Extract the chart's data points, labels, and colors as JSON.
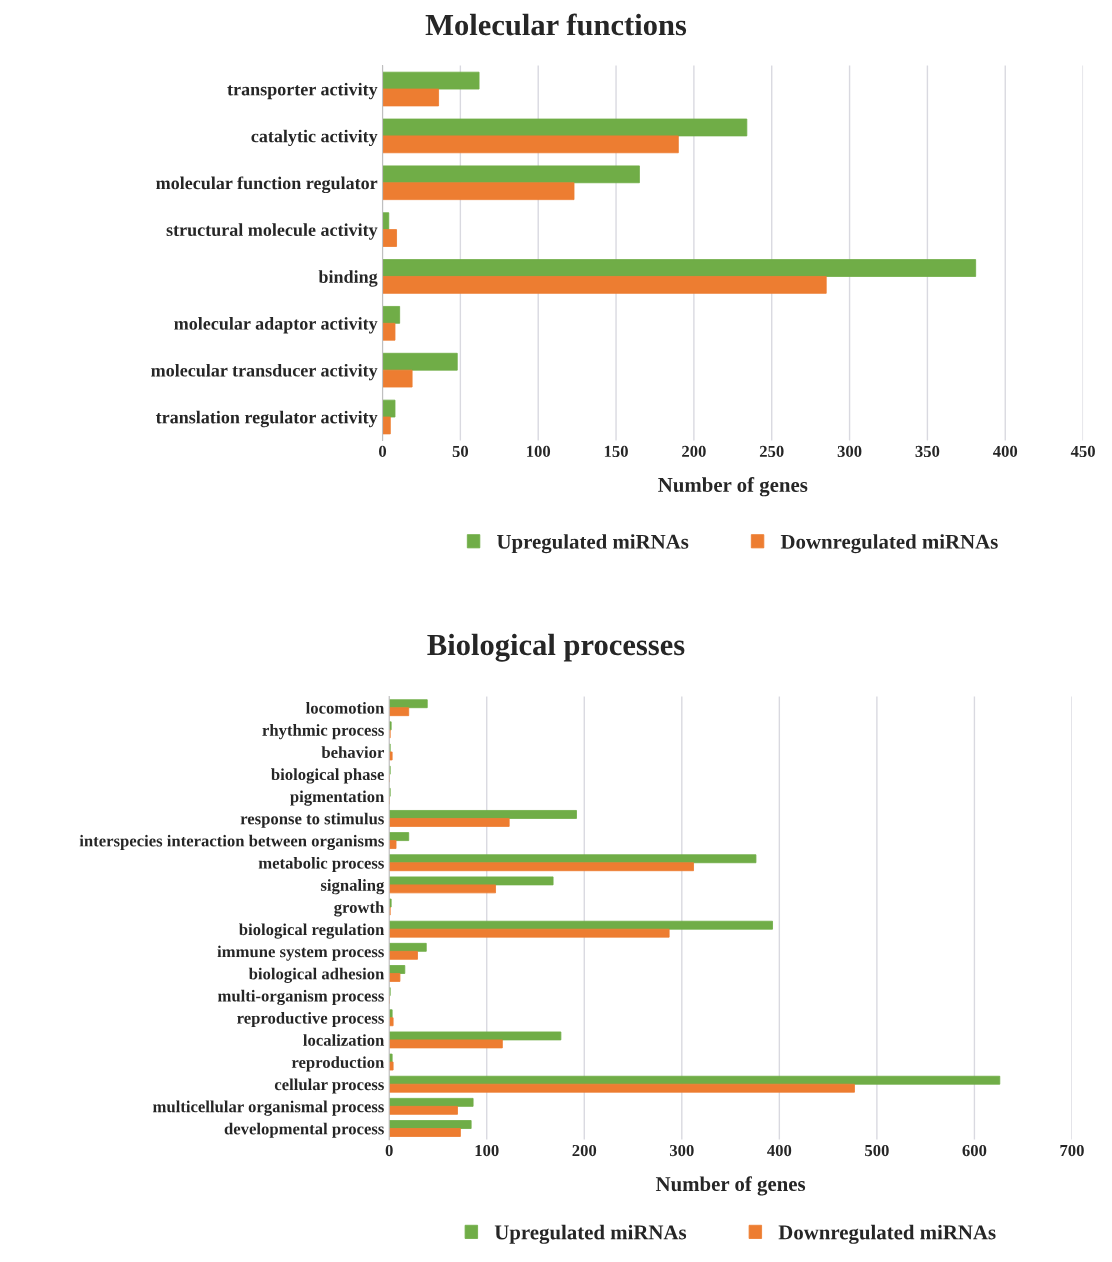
{
  "chart_data": [
    {
      "type": "bar",
      "orientation": "horizontal",
      "title": "Molecular functions",
      "xlabel": "Number of genes",
      "categories": [
        "transporter activity",
        "catalytic activity",
        "molecular function regulator",
        "structural molecule activity",
        "binding",
        "molecular adaptor activity",
        "molecular transducer activity",
        "translation regulator activity"
      ],
      "series": [
        {
          "name": "Upregulated miRNAs",
          "color": "#70ad47",
          "values": [
            62,
            234,
            165,
            4,
            381,
            11,
            48,
            8
          ]
        },
        {
          "name": "Downregulated miRNAs",
          "color": "#ed7d31",
          "values": [
            36,
            190,
            123,
            9,
            285,
            8,
            19,
            5
          ]
        }
      ],
      "xlim": [
        0,
        450
      ],
      "xticks": [
        0,
        50,
        100,
        150,
        200,
        250,
        300,
        350,
        400,
        450
      ],
      "grid": "x",
      "legend": "bottom"
    },
    {
      "type": "bar",
      "orientation": "horizontal",
      "title": "Biological processes",
      "xlabel": "Number of genes",
      "categories": [
        "locomotion",
        "rhythmic process",
        "behavior",
        "biological phase",
        "pigmentation",
        "response to stimulus",
        "interspecies interaction between organisms",
        "metabolic process",
        "signaling",
        "growth",
        "biological regulation",
        "immune system process",
        "biological adhesion",
        "multi-organism process",
        "reproductive process",
        "localization",
        "reproduction",
        "cellular process",
        "multicellular organismal process",
        "developmental process"
      ],
      "series": [
        {
          "name": "Upregulated miRNAs",
          "color": "#70ad47",
          "values": [
            39,
            2,
            1,
            1,
            1,
            192,
            20,
            376,
            168,
            2,
            393,
            38,
            16,
            1,
            3,
            176,
            3,
            626,
            86,
            84
          ]
        },
        {
          "name": "Downregulated miRNAs",
          "color": "#ed7d31",
          "values": [
            20,
            1,
            3,
            0,
            0,
            123,
            7,
            312,
            109,
            1,
            287,
            29,
            11,
            0,
            4,
            116,
            4,
            477,
            70,
            73
          ]
        }
      ],
      "xlim": [
        0,
        700
      ],
      "xticks": [
        0,
        100,
        200,
        300,
        400,
        500,
        600,
        700
      ],
      "grid": "x",
      "legend": "bottom"
    }
  ]
}
